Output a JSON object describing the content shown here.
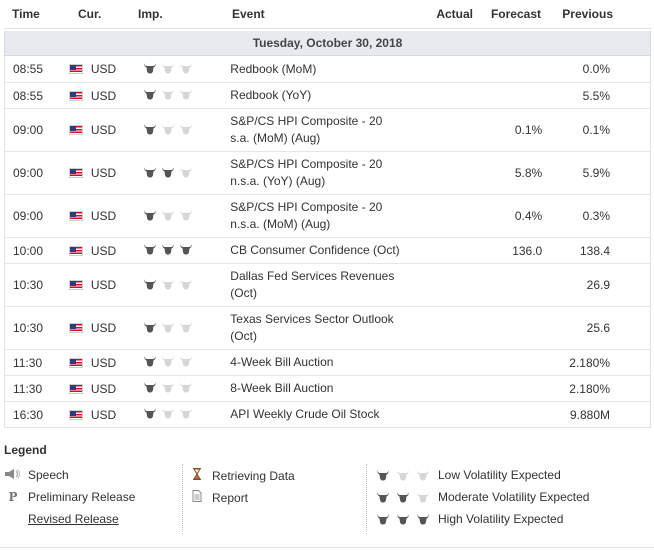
{
  "header": {
    "time": "Time",
    "currency": "Cur.",
    "importance": "Imp.",
    "event": "Event",
    "actual": "Actual",
    "forecast": "Forecast",
    "previous": "Previous"
  },
  "date_label": "Tuesday, October 30, 2018",
  "rows": [
    {
      "time": "08:55",
      "currency": "USD",
      "importance": 1,
      "event_line1": "Redbook (MoM)",
      "event_line2": "",
      "actual": "",
      "forecast": "",
      "previous": "0.0%"
    },
    {
      "time": "08:55",
      "currency": "USD",
      "importance": 1,
      "event_line1": "Redbook (YoY)",
      "event_line2": "",
      "actual": "",
      "forecast": "",
      "previous": "5.5%"
    },
    {
      "time": "09:00",
      "currency": "USD",
      "importance": 1,
      "event_line1": "S&P/CS HPI Composite - 20",
      "event_line2": "s.a. (MoM) (Aug)",
      "actual": "",
      "forecast": "0.1%",
      "previous": "0.1%"
    },
    {
      "time": "09:00",
      "currency": "USD",
      "importance": 2,
      "event_line1": "S&P/CS HPI Composite - 20",
      "event_line2": "n.s.a. (YoY) (Aug)",
      "actual": "",
      "forecast": "5.8%",
      "previous": "5.9%"
    },
    {
      "time": "09:00",
      "currency": "USD",
      "importance": 1,
      "event_line1": "S&P/CS HPI Composite - 20",
      "event_line2": "n.s.a. (MoM) (Aug)",
      "actual": "",
      "forecast": "0.4%",
      "previous": "0.3%"
    },
    {
      "time": "10:00",
      "currency": "USD",
      "importance": 3,
      "event_line1": "CB Consumer Confidence (Oct)",
      "event_line2": "",
      "actual": "",
      "forecast": "136.0",
      "previous": "138.4"
    },
    {
      "time": "10:30",
      "currency": "USD",
      "importance": 1,
      "event_line1": "Dallas Fed Services Revenues",
      "event_line2": "(Oct)",
      "actual": "",
      "forecast": "",
      "previous": "26.9"
    },
    {
      "time": "10:30",
      "currency": "USD",
      "importance": 1,
      "event_line1": "Texas Services Sector Outlook",
      "event_line2": "(Oct)",
      "actual": "",
      "forecast": "",
      "previous": "25.6"
    },
    {
      "time": "11:30",
      "currency": "USD",
      "importance": 1,
      "event_line1": "4-Week Bill Auction",
      "event_line2": "",
      "actual": "",
      "forecast": "",
      "previous": "2.180%"
    },
    {
      "time": "11:30",
      "currency": "USD",
      "importance": 1,
      "event_line1": "8-Week Bill Auction",
      "event_line2": "",
      "actual": "",
      "forecast": "",
      "previous": "2.180%"
    },
    {
      "time": "16:30",
      "currency": "USD",
      "importance": 1,
      "event_line1": "API Weekly Crude Oil Stock",
      "event_line2": "",
      "actual": "",
      "forecast": "",
      "previous": "9.880M"
    }
  ],
  "legend": {
    "title": "Legend",
    "speech": "Speech",
    "preliminary": "Preliminary Release",
    "revised": "Revised Release",
    "retrieving": "Retrieving Data",
    "report": "Report",
    "low": "Low Volatility Expected",
    "moderate": "Moderate Volatility Expected",
    "high": "High Volatility Expected"
  },
  "colors": {
    "bull_active": "#555555",
    "bull_inactive": "#d6d6d6",
    "date_bg": "#e8eaef"
  }
}
